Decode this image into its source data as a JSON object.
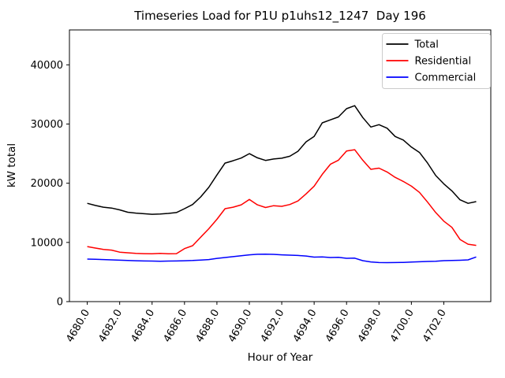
{
  "chart_data": {
    "type": "line",
    "title": "Timeseries Load for P1U p1uhs12_1247  Day 196",
    "xlabel": "Hour of Year",
    "ylabel": "kW total",
    "xlim": [
      4678.9,
      4704.9
    ],
    "ylim": [
      0,
      45900
    ],
    "grid": false,
    "legend_position": "upper right",
    "x_ticks": [
      4680,
      4682,
      4684,
      4686,
      4688,
      4690,
      4692,
      4694,
      4696,
      4698,
      4700,
      4702
    ],
    "x_tick_labels": [
      "4680.0",
      "4682.0",
      "4684.0",
      "4686.0",
      "4688.0",
      "4690.0",
      "4692.0",
      "4694.0",
      "4696.0",
      "4698.0",
      "4700.0",
      "4702.0"
    ],
    "y_ticks": [
      0,
      10000,
      20000,
      30000,
      40000
    ],
    "y_tick_labels": [
      "0",
      "10000",
      "20000",
      "30000",
      "40000"
    ],
    "x": [
      4680.0,
      4680.5,
      4681.0,
      4681.5,
      4682.0,
      4682.5,
      4683.0,
      4683.5,
      4684.0,
      4684.5,
      4685.0,
      4685.5,
      4686.0,
      4686.5,
      4687.0,
      4687.5,
      4688.0,
      4688.5,
      4689.0,
      4689.5,
      4690.0,
      4690.5,
      4691.0,
      4691.5,
      4692.0,
      4692.5,
      4693.0,
      4693.5,
      4694.0,
      4694.5,
      4695.0,
      4695.5,
      4696.0,
      4696.5,
      4697.0,
      4697.5,
      4698.0,
      4698.5,
      4699.0,
      4699.5,
      4700.0,
      4700.5,
      4701.0,
      4701.5,
      4702.0,
      4702.5,
      4703.0,
      4703.5,
      4704.0
    ],
    "series": [
      {
        "name": "Total",
        "color": "#000000",
        "values": [
          16600,
          16250,
          15950,
          15800,
          15500,
          15100,
          14950,
          14850,
          14750,
          14800,
          14900,
          15050,
          15700,
          16400,
          17700,
          19300,
          21400,
          23400,
          23800,
          24250,
          25000,
          24300,
          23850,
          24100,
          24230,
          24560,
          25400,
          27000,
          27900,
          30200,
          30700,
          31200,
          32600,
          33100,
          31100,
          29500,
          29900,
          29300,
          27900,
          27300,
          26100,
          25200,
          23400,
          21300,
          19900,
          18700,
          17200,
          16600,
          16900
        ]
      },
      {
        "name": "Residential",
        "color": "#ff0000",
        "values": [
          9300,
          9050,
          8820,
          8700,
          8350,
          8250,
          8150,
          8100,
          8070,
          8150,
          8070,
          8100,
          8950,
          9450,
          10900,
          12300,
          13900,
          15700,
          15950,
          16350,
          17250,
          16350,
          15900,
          16200,
          16100,
          16400,
          17000,
          18200,
          19500,
          21500,
          23200,
          23900,
          25450,
          25670,
          23900,
          22350,
          22550,
          21900,
          21000,
          20300,
          19500,
          18450,
          16800,
          15050,
          13600,
          12550,
          10500,
          9700,
          9500
        ]
      },
      {
        "name": "Commercial",
        "color": "#0000ff",
        "values": [
          7180,
          7140,
          7100,
          7050,
          7000,
          6950,
          6900,
          6870,
          6850,
          6830,
          6850,
          6870,
          6900,
          6950,
          7020,
          7100,
          7300,
          7450,
          7600,
          7750,
          7900,
          8000,
          8020,
          7980,
          7900,
          7850,
          7800,
          7700,
          7520,
          7550,
          7450,
          7480,
          7320,
          7350,
          6920,
          6700,
          6600,
          6580,
          6600,
          6620,
          6690,
          6730,
          6780,
          6820,
          6920,
          6950,
          6980,
          7050,
          7550
        ]
      }
    ]
  }
}
